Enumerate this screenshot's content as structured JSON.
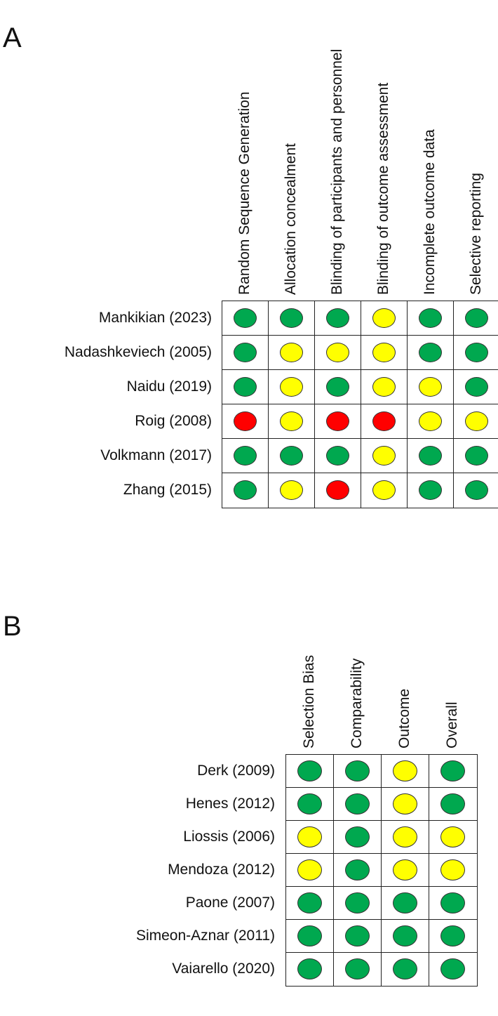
{
  "panel_a": {
    "letter": "A",
    "columns": [
      "Random Sequence Generation",
      "Allocation concealment",
      "Blinding of participants and personnel",
      "Blinding of outcome assessment",
      "Incomplete outcome data",
      "Selective reporting"
    ],
    "rows": [
      {
        "study": "Mankikian (2023)",
        "ratings": [
          "low",
          "low",
          "low",
          "some",
          "low",
          "low"
        ]
      },
      {
        "study": "Nadashkeviech (2005)",
        "ratings": [
          "low",
          "some",
          "some",
          "some",
          "low",
          "low"
        ]
      },
      {
        "study": "Naidu (2019)",
        "ratings": [
          "low",
          "some",
          "low",
          "some",
          "some",
          "low"
        ]
      },
      {
        "study": "Roig (2008)",
        "ratings": [
          "high",
          "some",
          "high",
          "high",
          "some",
          "some"
        ]
      },
      {
        "study": "Volkmann (2017)",
        "ratings": [
          "low",
          "low",
          "low",
          "some",
          "low",
          "low"
        ]
      },
      {
        "study": "Zhang (2015)",
        "ratings": [
          "low",
          "some",
          "high",
          "some",
          "low",
          "low"
        ]
      }
    ]
  },
  "panel_b": {
    "letter": "B",
    "columns": [
      "Selection Bias",
      "Comparability",
      "Outcome",
      "Overall"
    ],
    "rows": [
      {
        "study": "Derk (2009)",
        "ratings": [
          "low",
          "low",
          "some",
          "low"
        ]
      },
      {
        "study": "Henes (2012)",
        "ratings": [
          "low",
          "low",
          "some",
          "low"
        ]
      },
      {
        "study": "Liossis (2006)",
        "ratings": [
          "some",
          "low",
          "some",
          "some"
        ]
      },
      {
        "study": "Mendoza (2012)",
        "ratings": [
          "some",
          "low",
          "some",
          "some"
        ]
      },
      {
        "study": "Paone (2007)",
        "ratings": [
          "low",
          "low",
          "low",
          "low"
        ]
      },
      {
        "study": "Simeon-Aznar (2011)",
        "ratings": [
          "low",
          "low",
          "low",
          "low"
        ]
      },
      {
        "study": "Vaiarello (2020)",
        "ratings": [
          "low",
          "low",
          "low",
          "low"
        ]
      }
    ]
  },
  "colors": {
    "low": "#00a84f",
    "some": "#ffff00",
    "high": "#ff0000"
  }
}
